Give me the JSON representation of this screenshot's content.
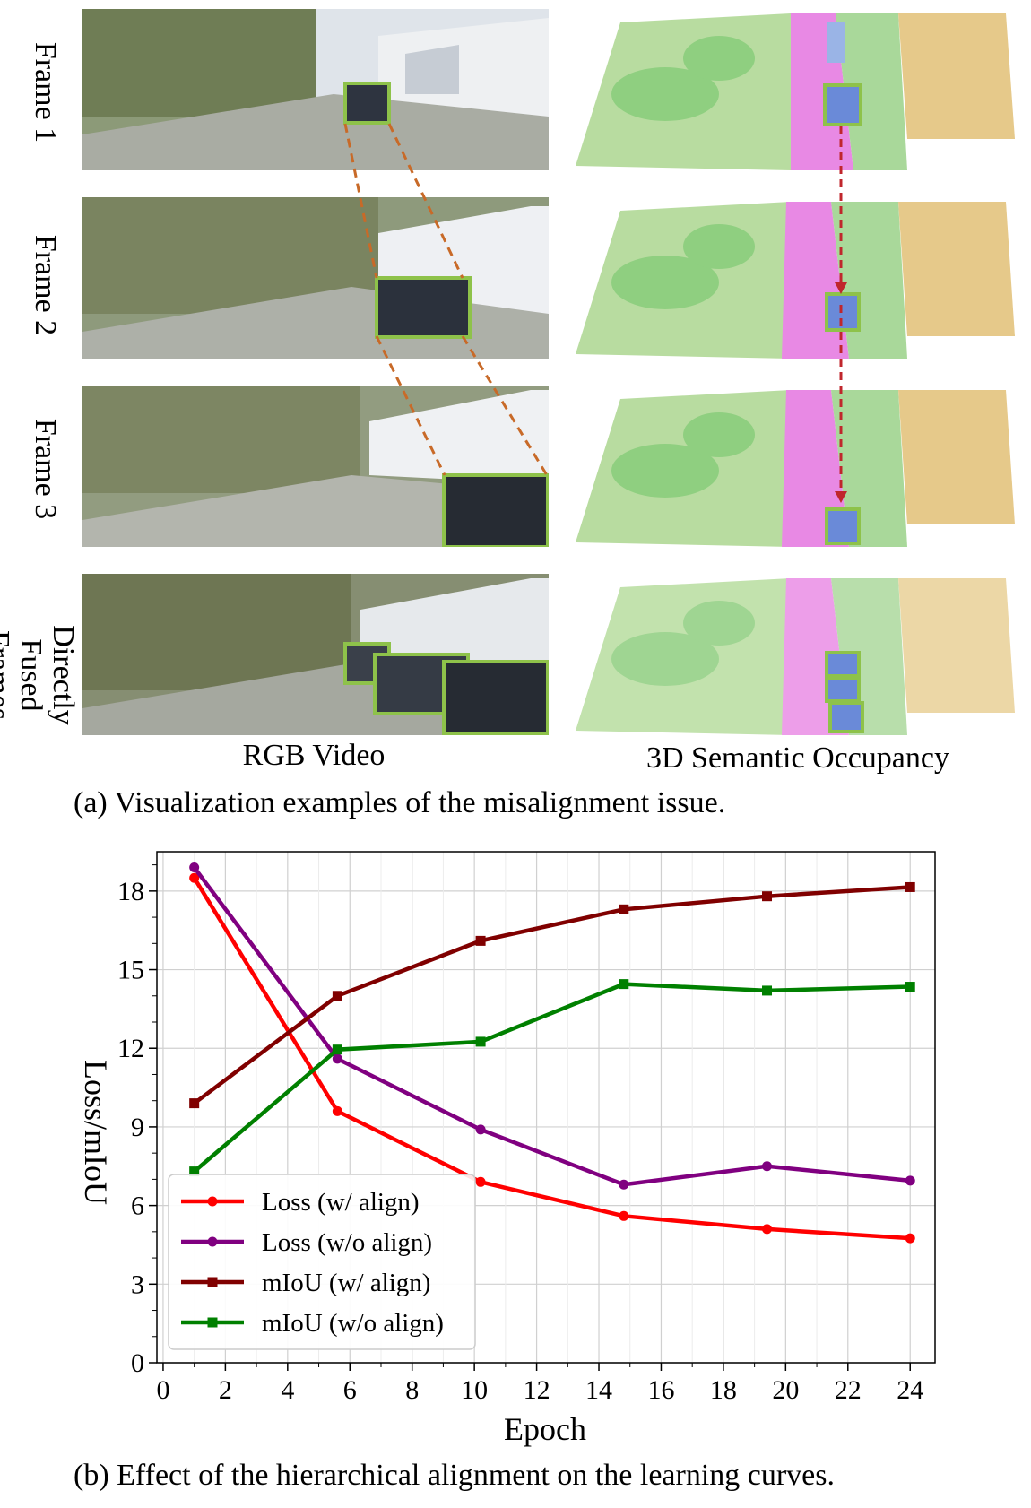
{
  "figure_a": {
    "rows": [
      {
        "label": "Frame 1"
      },
      {
        "label": "Frame 2"
      },
      {
        "label": "Frame 3"
      },
      {
        "label_line1": "Directly",
        "label_line2": "Fused Frames"
      }
    ],
    "col_rgb": "RGB Video",
    "col_occ": "3D Semantic Occupancy",
    "caption": "(a) Visualization examples of the misalignment issue.",
    "colors": {
      "grass": "#b8dca0",
      "vegetation": "#8fcf80",
      "road": "#e889e4",
      "building": "#e6c98a",
      "car": "#6a8ad8",
      "box": "#8ec24a",
      "arrow": "#c0262c",
      "link": "#c86a28"
    }
  },
  "figure_b": {
    "caption": "(b) Effect of the hierarchical alignment on the learning curves.",
    "chart_data": {
      "type": "line",
      "xlabel": "Epoch",
      "ylabel": "Loss/mIoU",
      "xlim": [
        -0.2,
        24.8
      ],
      "ylim": [
        0,
        19.5
      ],
      "xticks": [
        "0",
        "2",
        "4",
        "6",
        "8",
        "10",
        "12",
        "14",
        "16",
        "18",
        "20",
        "22",
        "24"
      ],
      "yticks": [
        "0",
        "3",
        "6",
        "9",
        "12",
        "15",
        "18"
      ],
      "grid": true,
      "legend_position": "lower-left",
      "series": [
        {
          "name": "Loss (w/ align)",
          "color": "#ff0000",
          "marker": "circle",
          "x": [
            1,
            5.6,
            10.2,
            14.8,
            19.4,
            24
          ],
          "y": [
            18.5,
            9.6,
            6.9,
            5.6,
            5.1,
            4.75
          ]
        },
        {
          "name": "Loss (w/o align)",
          "color": "#800080",
          "marker": "circle",
          "x": [
            1,
            5.6,
            10.2,
            14.8,
            19.4,
            24
          ],
          "y": [
            18.9,
            11.6,
            8.9,
            6.8,
            7.5,
            6.95
          ]
        },
        {
          "name": "mIoU (w/ align)",
          "color": "#800000",
          "marker": "square",
          "x": [
            1,
            5.6,
            10.2,
            14.8,
            19.4,
            24
          ],
          "y": [
            9.9,
            14.0,
            16.1,
            17.3,
            17.8,
            18.15
          ]
        },
        {
          "name": "mIoU (w/o align)",
          "color": "#008000",
          "marker": "square",
          "x": [
            1,
            5.6,
            10.2,
            14.8,
            19.4,
            24
          ],
          "y": [
            7.3,
            11.95,
            12.25,
            14.45,
            14.2,
            14.35
          ]
        }
      ]
    }
  }
}
